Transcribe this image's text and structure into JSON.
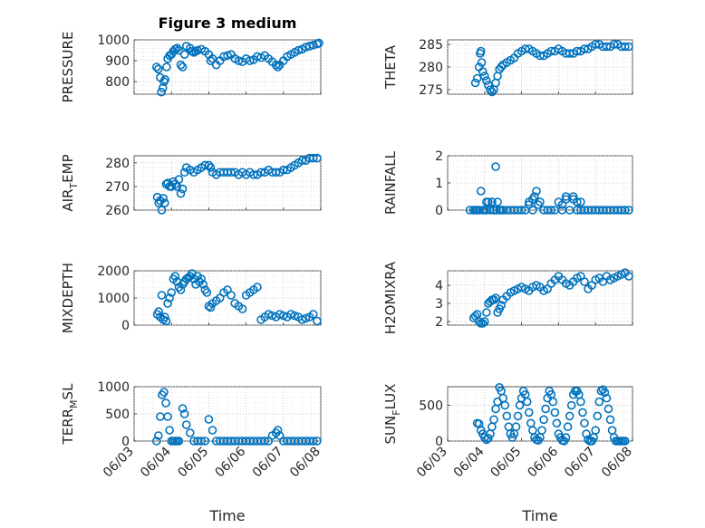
{
  "figure": {
    "title": "Figure 3 medium",
    "marker_color": "#0072BD"
  },
  "x_tick_labels": [
    "06/03",
    "06/04",
    "06/05",
    "06/06",
    "06/07",
    "06/08"
  ],
  "x_ticks": [
    0,
    1,
    2,
    3,
    4,
    5
  ],
  "chart_data": [
    {
      "type": "scatter",
      "title": "Figure 3 medium",
      "ylabel": "PRESSURE",
      "xlabel": "",
      "xlim": [
        0,
        5
      ],
      "ylim": [
        740,
        1000
      ],
      "yticks": [
        800,
        900,
        1000
      ],
      "grid": true,
      "x": [
        0.6,
        0.65,
        0.7,
        0.73,
        0.77,
        0.8,
        0.83,
        0.87,
        0.9,
        0.95,
        1.0,
        1.05,
        1.1,
        1.15,
        1.2,
        1.25,
        1.3,
        1.35,
        1.4,
        1.5,
        1.55,
        1.6,
        1.65,
        1.7,
        1.8,
        1.9,
        2.0,
        2.05,
        2.1,
        2.2,
        2.3,
        2.4,
        2.5,
        2.6,
        2.7,
        2.8,
        2.9,
        3.0,
        3.1,
        3.2,
        3.3,
        3.4,
        3.5,
        3.6,
        3.7,
        3.8,
        3.85,
        3.9,
        4.0,
        4.1,
        4.2,
        4.3,
        4.4,
        4.5,
        4.6,
        4.7,
        4.8,
        4.9,
        4.95
      ],
      "y": [
        870,
        860,
        820,
        750,
        770,
        800,
        810,
        870,
        910,
        925,
        930,
        945,
        955,
        960,
        950,
        880,
        870,
        930,
        970,
        960,
        945,
        940,
        945,
        950,
        955,
        945,
        930,
        900,
        910,
        880,
        900,
        920,
        925,
        930,
        910,
        900,
        895,
        910,
        900,
        905,
        920,
        915,
        925,
        910,
        895,
        880,
        870,
        880,
        900,
        920,
        930,
        940,
        950,
        955,
        965,
        970,
        975,
        980,
        985
      ]
    },
    {
      "type": "scatter",
      "ylabel": "THETA",
      "xlabel": "",
      "xlim": [
        0,
        5
      ],
      "ylim": [
        274,
        286
      ],
      "yticks": [
        275,
        280,
        285
      ],
      "grid": true,
      "x": [
        0.75,
        0.8,
        0.85,
        0.88,
        0.9,
        0.92,
        0.95,
        1.0,
        1.05,
        1.1,
        1.15,
        1.2,
        1.25,
        1.3,
        1.35,
        1.4,
        1.45,
        1.5,
        1.6,
        1.7,
        1.8,
        1.9,
        2.0,
        2.1,
        2.2,
        2.3,
        2.4,
        2.5,
        2.6,
        2.7,
        2.8,
        2.9,
        3.0,
        3.1,
        3.2,
        3.3,
        3.4,
        3.5,
        3.6,
        3.7,
        3.8,
        3.9,
        4.0,
        4.1,
        4.2,
        4.3,
        4.4,
        4.5,
        4.6,
        4.7,
        4.8,
        4.9
      ],
      "y": [
        276.5,
        277.5,
        280,
        283,
        283.5,
        281,
        279,
        278,
        277,
        276,
        275,
        274.5,
        275,
        276.5,
        278,
        279.5,
        280,
        280.5,
        281,
        281.5,
        282,
        283,
        283.5,
        284,
        284,
        283.5,
        283,
        282.5,
        282.5,
        283,
        283.5,
        283.5,
        284,
        283.5,
        283,
        283,
        283,
        283.5,
        283.5,
        284,
        284,
        284.5,
        285,
        285,
        284.5,
        284.5,
        284.5,
        285,
        285,
        284.5,
        284.5,
        284.5
      ]
    },
    {
      "type": "scatter",
      "ylabel": "AIR_TEMP",
      "xlabel": "",
      "xlim": [
        0,
        5
      ],
      "ylim": [
        260,
        283
      ],
      "yticks": [
        260,
        270,
        280
      ],
      "grid": true,
      "x": [
        0.62,
        0.66,
        0.7,
        0.74,
        0.78,
        0.82,
        0.86,
        0.9,
        0.95,
        1.0,
        1.05,
        1.1,
        1.15,
        1.2,
        1.25,
        1.3,
        1.35,
        1.4,
        1.5,
        1.6,
        1.7,
        1.8,
        1.9,
        2.0,
        2.05,
        2.1,
        2.2,
        2.3,
        2.4,
        2.5,
        2.6,
        2.7,
        2.8,
        2.9,
        3.0,
        3.1,
        3.2,
        3.3,
        3.4,
        3.5,
        3.6,
        3.7,
        3.8,
        3.9,
        4.0,
        4.1,
        4.2,
        4.3,
        4.4,
        4.5,
        4.6,
        4.7,
        4.8,
        4.9
      ],
      "y": [
        265.5,
        263,
        264,
        260,
        265,
        263,
        271,
        271.5,
        270,
        270,
        272,
        271,
        270,
        273,
        267,
        269,
        276,
        278,
        277,
        276,
        277,
        278,
        279,
        279,
        278,
        276,
        275,
        276,
        276,
        276,
        276,
        276,
        275,
        276,
        275,
        276,
        275,
        275,
        276,
        276,
        277,
        276,
        276,
        276,
        277,
        277,
        278,
        279,
        280,
        281,
        281,
        282,
        282,
        282
      ]
    },
    {
      "type": "scatter",
      "ylabel": "RAINFALL",
      "xlabel": "",
      "xlim": [
        0,
        5
      ],
      "ylim": [
        0,
        2
      ],
      "yticks": [
        0,
        1,
        2
      ],
      "grid": true,
      "x": [
        0.6,
        0.7,
        0.8,
        0.85,
        0.9,
        0.95,
        1.0,
        1.05,
        1.1,
        1.15,
        1.2,
        1.25,
        1.3,
        1.35,
        1.4,
        1.45,
        1.5,
        1.6,
        1.7,
        1.8,
        1.9,
        2.0,
        2.1,
        2.2,
        2.3,
        2.4,
        2.5,
        2.6,
        2.7,
        2.8,
        2.9,
        3.0,
        3.1,
        3.2,
        3.3,
        3.4,
        3.5,
        3.6,
        3.7,
        3.8,
        3.9,
        4.0,
        4.1,
        4.2,
        4.3,
        4.4,
        4.5,
        4.6,
        4.7,
        4.8,
        4.9,
        0.75,
        1.05,
        1.2,
        1.25,
        1.32,
        2.2,
        2.3,
        2.35,
        2.45,
        3.1,
        3.2,
        3.4,
        3.5,
        3.6
      ],
      "y": [
        0,
        0,
        0,
        0,
        0.7,
        0,
        0,
        0,
        0.3,
        0,
        0.3,
        0,
        1.6,
        0.3,
        0,
        0,
        0,
        0,
        0,
        0,
        0,
        0,
        0,
        0.3,
        0.4,
        0.7,
        0.3,
        0,
        0,
        0,
        0,
        0.3,
        0,
        0.4,
        0,
        0.5,
        0,
        0,
        0,
        0,
        0,
        0,
        0,
        0,
        0,
        0,
        0,
        0,
        0,
        0,
        0,
        0,
        0.3,
        0.3,
        0,
        0,
        0.2,
        0,
        0.5,
        0.2,
        0.2,
        0.5,
        0.4,
        0.3,
        0.3
      ]
    },
    {
      "type": "scatter",
      "ylabel": "MIXDEPTH",
      "xlabel": "",
      "xlim": [
        0,
        5
      ],
      "ylim": [
        0,
        2000
      ],
      "yticks": [
        0,
        1000,
        2000
      ],
      "grid": true,
      "x": [
        0.62,
        0.66,
        0.7,
        0.74,
        0.78,
        0.82,
        0.86,
        0.9,
        0.95,
        1.0,
        1.05,
        1.1,
        1.15,
        1.2,
        1.25,
        1.3,
        1.35,
        1.4,
        1.45,
        1.5,
        1.55,
        1.6,
        1.65,
        1.7,
        1.75,
        1.8,
        1.85,
        1.9,
        1.95,
        2.0,
        2.05,
        2.1,
        2.2,
        2.3,
        2.4,
        2.5,
        2.6,
        2.7,
        2.8,
        2.9,
        3.0,
        3.1,
        3.2,
        3.3,
        3.4,
        3.5,
        3.6,
        3.7,
        3.8,
        3.9,
        4.0,
        4.1,
        4.2,
        4.3,
        4.4,
        4.5,
        4.6,
        4.7,
        4.8,
        4.9
      ],
      "y": [
        400,
        500,
        300,
        1100,
        200,
        300,
        150,
        800,
        1000,
        1200,
        1700,
        1800,
        1600,
        1400,
        1300,
        1500,
        1600,
        1700,
        1750,
        1800,
        1900,
        1700,
        1500,
        1800,
        1600,
        1700,
        1500,
        1300,
        1200,
        700,
        650,
        800,
        900,
        1000,
        1200,
        1300,
        1100,
        800,
        700,
        600,
        1100,
        1200,
        1300,
        1400,
        200,
        300,
        400,
        350,
        300,
        400,
        350,
        300,
        400,
        350,
        300,
        200,
        250,
        300,
        400,
        150
      ]
    },
    {
      "type": "scatter",
      "ylabel": "H2OMIXRA",
      "xlabel": "",
      "xlim": [
        0,
        5
      ],
      "ylim": [
        1.8,
        4.8
      ],
      "yticks": [
        2,
        3,
        4
      ],
      "grid": true,
      "x": [
        0.7,
        0.75,
        0.8,
        0.85,
        0.9,
        0.95,
        1.0,
        1.05,
        1.1,
        1.15,
        1.2,
        1.25,
        1.3,
        1.35,
        1.4,
        1.45,
        1.5,
        1.6,
        1.7,
        1.8,
        1.9,
        2.0,
        2.1,
        2.2,
        2.3,
        2.4,
        2.5,
        2.6,
        2.7,
        2.8,
        2.9,
        3.0,
        3.1,
        3.2,
        3.3,
        3.4,
        3.5,
        3.6,
        3.7,
        3.8,
        3.9,
        4.0,
        4.1,
        4.2,
        4.3,
        4.4,
        4.5,
        4.6,
        4.7,
        4.8,
        4.9
      ],
      "y": [
        2.2,
        2.3,
        2.4,
        2.0,
        1.9,
        1.9,
        2.0,
        2.5,
        3.0,
        3.1,
        3.2,
        3.2,
        3.3,
        2.5,
        2.7,
        2.9,
        3.2,
        3.4,
        3.6,
        3.7,
        3.8,
        3.9,
        3.8,
        3.7,
        3.9,
        4.0,
        3.9,
        3.7,
        3.8,
        4.1,
        4.3,
        4.5,
        4.3,
        4.1,
        4.0,
        4.2,
        4.4,
        4.5,
        4.2,
        3.8,
        4.0,
        4.3,
        4.4,
        4.2,
        4.5,
        4.3,
        4.4,
        4.5,
        4.6,
        4.7,
        4.5
      ]
    },
    {
      "type": "scatter",
      "ylabel": "TERR_MSL",
      "xlabel": "Time",
      "xlim": [
        0,
        5
      ],
      "ylim": [
        0,
        1000
      ],
      "yticks": [
        0,
        500,
        1000
      ],
      "grid": true,
      "x": [
        0.6,
        0.65,
        0.7,
        0.75,
        0.8,
        0.85,
        0.9,
        0.95,
        1.0,
        1.05,
        1.1,
        1.15,
        1.2,
        1.3,
        1.35,
        1.4,
        1.5,
        1.6,
        1.7,
        1.8,
        1.9,
        2.0,
        2.1,
        2.2,
        2.3,
        2.4,
        2.5,
        2.6,
        2.7,
        2.8,
        2.9,
        3.0,
        3.1,
        3.2,
        3.3,
        3.4,
        3.5,
        3.6,
        3.7,
        3.8,
        3.85,
        3.9,
        4.0,
        4.1,
        4.2,
        4.3,
        4.4,
        4.5,
        4.6,
        4.7,
        4.8,
        4.9
      ],
      "y": [
        0,
        100,
        450,
        850,
        900,
        700,
        450,
        200,
        0,
        0,
        0,
        0,
        0,
        600,
        500,
        300,
        150,
        0,
        0,
        0,
        0,
        400,
        200,
        0,
        0,
        0,
        0,
        0,
        0,
        0,
        0,
        0,
        0,
        0,
        0,
        0,
        0,
        0,
        100,
        150,
        200,
        100,
        0,
        0,
        0,
        0,
        0,
        0,
        0,
        0,
        0,
        0
      ]
    },
    {
      "type": "scatter",
      "ylabel": "SUN_FLUX",
      "xlabel": "Time",
      "xlim": [
        0,
        5
      ],
      "ylim": [
        0,
        760
      ],
      "yticks": [
        0,
        500
      ],
      "grid": true,
      "x": [
        0.8,
        0.85,
        0.9,
        0.95,
        1.0,
        1.05,
        1.1,
        1.15,
        1.2,
        1.25,
        1.3,
        1.35,
        1.4,
        1.45,
        1.5,
        1.55,
        1.6,
        1.65,
        1.7,
        1.75,
        1.8,
        1.85,
        1.9,
        1.95,
        2.0,
        2.05,
        2.1,
        2.15,
        2.2,
        2.25,
        2.3,
        2.35,
        2.4,
        2.45,
        2.5,
        2.55,
        2.6,
        2.65,
        2.7,
        2.75,
        2.8,
        2.85,
        2.9,
        2.95,
        3.0,
        3.05,
        3.1,
        3.15,
        3.2,
        3.25,
        3.3,
        3.35,
        3.4,
        3.45,
        3.5,
        3.55,
        3.6,
        3.65,
        3.7,
        3.75,
        3.8,
        3.85,
        3.9,
        3.95,
        4.0,
        4.05,
        4.1,
        4.15,
        4.2,
        4.25,
        4.3,
        4.35,
        4.4,
        4.45,
        4.5,
        4.55,
        4.6,
        4.65,
        4.7,
        4.75,
        4.8
      ],
      "y": [
        250,
        240,
        150,
        100,
        50,
        20,
        40,
        100,
        200,
        300,
        450,
        550,
        750,
        700,
        600,
        500,
        350,
        200,
        100,
        50,
        100,
        200,
        350,
        500,
        600,
        700,
        650,
        550,
        400,
        250,
        150,
        50,
        20,
        10,
        50,
        150,
        300,
        450,
        600,
        700,
        650,
        550,
        400,
        250,
        100,
        50,
        10,
        0,
        50,
        200,
        350,
        500,
        650,
        700,
        700,
        650,
        550,
        400,
        250,
        100,
        20,
        0,
        0,
        50,
        150,
        350,
        550,
        700,
        720,
        680,
        600,
        450,
        300,
        150,
        50,
        0,
        0,
        0,
        0,
        0,
        0
      ]
    }
  ]
}
